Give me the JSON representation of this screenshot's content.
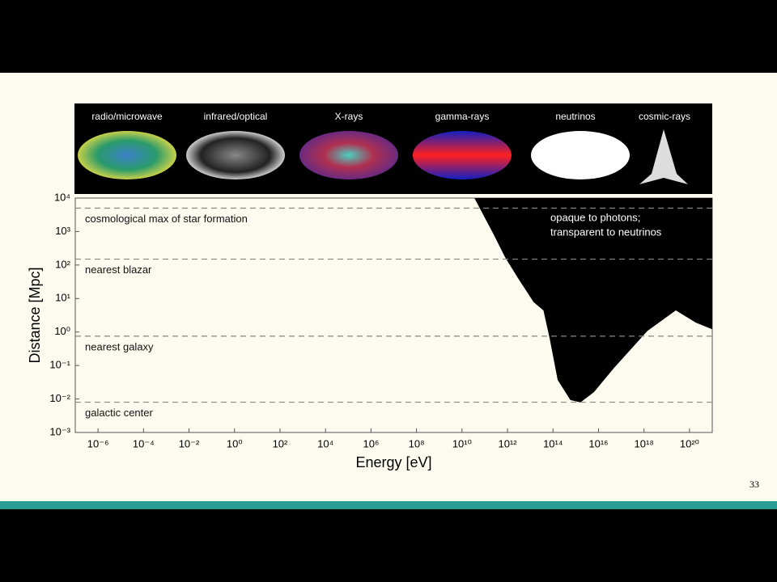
{
  "page_number": "33",
  "panels": [
    "radio/microwave",
    "infrared/optical",
    "X-rays",
    "gamma-rays",
    "neutrinos",
    "cosmic-rays"
  ],
  "chart_data": {
    "type": "area",
    "xlabel": "Energy [eV]",
    "ylabel": "Distance [Mpc]",
    "log_x": true,
    "log_y": true,
    "xlim": [
      1e-07,
      1e+21
    ],
    "ylim": [
      0.001,
      10000
    ],
    "xticks": [
      {
        "value": 1e-06,
        "label": "10⁻⁶"
      },
      {
        "value": 0.0001,
        "label": "10⁻⁴"
      },
      {
        "value": 0.01,
        "label": "10⁻²"
      },
      {
        "value": 1,
        "label": "10⁰"
      },
      {
        "value": 100,
        "label": "10²"
      },
      {
        "value": 10000,
        "label": "10⁴"
      },
      {
        "value": 1000000.0,
        "label": "10⁶"
      },
      {
        "value": 100000000.0,
        "label": "10⁸"
      },
      {
        "value": 10000000000.0,
        "label": "10¹⁰"
      },
      {
        "value": 1000000000000.0,
        "label": "10¹²"
      },
      {
        "value": 100000000000000.0,
        "label": "10¹⁴"
      },
      {
        "value": 1e+16,
        "label": "10¹⁶"
      },
      {
        "value": 1e+18,
        "label": "10¹⁸"
      },
      {
        "value": 1e+20,
        "label": "10²⁰"
      }
    ],
    "yticks": [
      {
        "value": 0.001,
        "label": "10⁻³"
      },
      {
        "value": 0.01,
        "label": "10⁻²"
      },
      {
        "value": 0.1,
        "label": "10⁻¹"
      },
      {
        "value": 1,
        "label": "10⁰"
      },
      {
        "value": 10,
        "label": "10¹"
      },
      {
        "value": 100,
        "label": "10²"
      },
      {
        "value": 1000,
        "label": "10³"
      },
      {
        "value": 10000,
        "label": "10⁴"
      }
    ],
    "series": [
      {
        "color": "#000000",
        "x": [
          35000000000.0,
          230000000000.0,
          800000000000.0,
          2800000000000.0,
          14000000000000.0,
          38000000000000.0,
          72000000000000.0,
          160000000000000.0,
          580000000000000.0,
          1600000000000000.0,
          6300000000000000.0,
          5e+16,
          1.4e+18,
          2.5e+19,
          1.9e+20,
          1e+21
        ],
        "values": [
          10000,
          890,
          166,
          42,
          7.8,
          4.4,
          0.62,
          0.037,
          0.0093,
          0.0079,
          0.016,
          0.087,
          1.07,
          4.4,
          1.9,
          1.2
        ]
      }
    ],
    "reference_lines": [
      {
        "value": 5000,
        "label": "cosmological max of star formation"
      },
      {
        "value": 150,
        "label": "nearest blazar"
      },
      {
        "value": 0.75,
        "label": "nearest galaxy"
      },
      {
        "value": 0.008,
        "label": "galactic center"
      }
    ],
    "annotation": [
      "opaque to photons;",
      "transparent to neutrinos"
    ]
  }
}
